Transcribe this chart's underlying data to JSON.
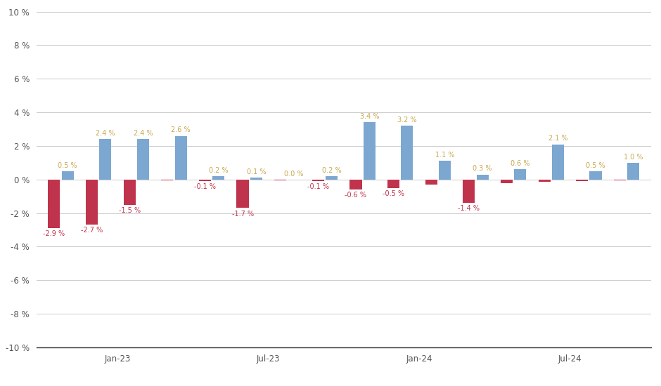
{
  "groups": [
    {
      "red": -2.9,
      "blue": 0.5
    },
    {
      "red": -2.7,
      "blue": 2.4
    },
    {
      "red": -1.5,
      "blue": 2.4
    },
    {
      "red": -0.05,
      "blue": 2.6
    },
    {
      "red": -0.1,
      "blue": 0.2
    },
    {
      "red": -1.7,
      "blue": 0.1
    },
    {
      "red": -0.05,
      "blue": 0.0
    },
    {
      "red": -0.1,
      "blue": 0.2
    },
    {
      "red": -0.6,
      "blue": 3.4
    },
    {
      "red": -0.5,
      "blue": 3.2
    },
    {
      "red": -0.3,
      "blue": 1.1
    },
    {
      "red": -1.4,
      "blue": 0.3
    },
    {
      "red": -0.2,
      "blue": 0.6
    },
    {
      "red": -0.15,
      "blue": 2.1
    },
    {
      "red": -0.1,
      "blue": 0.5
    },
    {
      "red": -0.05,
      "blue": 1.0
    }
  ],
  "red_labels": [
    "-2.9 %",
    "-2.7 %",
    "-1.5 %",
    "",
    "-0.1 %",
    "-1.7 %",
    "",
    "-0.1 %",
    "-0.6 %",
    "-0.5 %",
    "",
    "-1.4 %",
    "",
    "",
    "",
    ""
  ],
  "blue_labels": [
    "0.5 %",
    "2.4 %",
    "2.4 %",
    "2.6 %",
    "0.2 %",
    "0.1 %",
    "0.0 %",
    "0.2 %",
    "3.4 %",
    "3.2 %",
    "1.1 %",
    "0.3 %",
    "0.6 %",
    "2.1 %",
    "0.5 %",
    "1.0 %"
  ],
  "xtick_group_indices": [
    1.5,
    5.5,
    9.5,
    13.5
  ],
  "xtick_labels": [
    "Jan-23",
    "Jul-23",
    "Jan-24",
    "Jul-24"
  ],
  "ylim": [
    -10,
    10
  ],
  "yticks": [
    -10,
    -8,
    -6,
    -4,
    -2,
    0,
    2,
    4,
    6,
    8,
    10
  ],
  "red_color": "#c0334d",
  "blue_color": "#7ba7d0",
  "background_color": "#ffffff",
  "grid_color": "#cccccc",
  "label_color_red": "#c0334d",
  "label_color_blue": "#c8a850",
  "label_fontsize": 7.0,
  "tick_fontsize": 8.5
}
